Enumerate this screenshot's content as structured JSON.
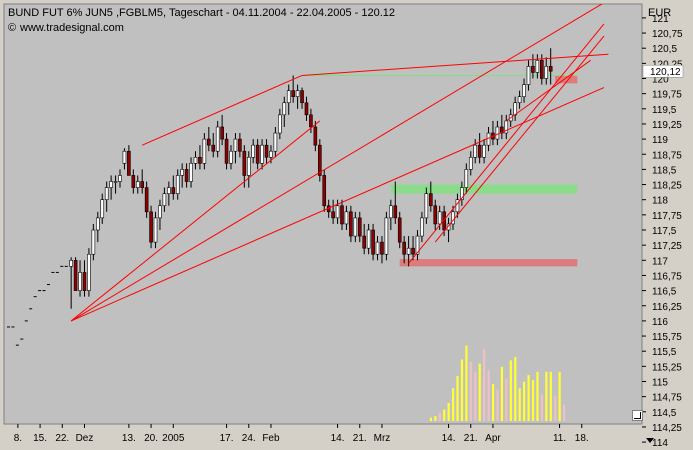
{
  "header": {
    "title": "BUND FUT 6% JUN5 ,FGBLM5, Tageschart - 04.11.2004 - 22.04.2005 - 120.12",
    "watermark": "www.tradesignal.com",
    "copyright_symbol": "©"
  },
  "colors": {
    "background": "#d4d0c8",
    "plot": "#c0c0c0",
    "trendline": "#ff0000",
    "bullish_candle": "#ffffff",
    "bearish_candle": "#8b0000",
    "volume_up": "#ffff33",
    "volume_down": "#f0c0c8",
    "zone_green": "#80e080",
    "zone_red": "#e07070"
  },
  "chart_data": {
    "type": "candlestick",
    "title": "BUND FUT 6% JUN5 ,FGBLM5, Tageschart - 04.11.2004 - 22.04.2005 - 120.12",
    "y_unit": "EUR",
    "ylim": [
      114,
      121.25
    ],
    "y_ticks": [
      "121",
      "120,75",
      "120,5",
      "120,25",
      "120",
      "119,75",
      "119,5",
      "119,25",
      "119",
      "118,75",
      "118,5",
      "118,25",
      "118",
      "117,75",
      "117,5",
      "117,25",
      "117",
      "116,75",
      "116,5",
      "116,25",
      "116",
      "115,75",
      "115,5",
      "115,25",
      "115",
      "114,75",
      "114,5",
      "114,25",
      "114"
    ],
    "last_price_label": "120,12",
    "last_price": 120.12,
    "x_labels": [
      "8.",
      "15.",
      "22.",
      "Dez",
      "13.",
      "20.",
      "2005",
      "17.",
      "24.",
      "Feb",
      "14.",
      "21.",
      "Mrz",
      "14.",
      "21.",
      "Apr",
      "11.",
      "18."
    ],
    "x_label_index": [
      2,
      7,
      12,
      17,
      27,
      32,
      37,
      49,
      54,
      59,
      74,
      79,
      84,
      99,
      104,
      109,
      124,
      129
    ],
    "prices": [
      {
        "i": 0,
        "p": 115.9
      },
      {
        "i": 1,
        "p": 115.9
      },
      {
        "i": 2,
        "p": 115.6
      },
      {
        "i": 3,
        "p": 115.7
      },
      {
        "i": 4,
        "p": 116
      },
      {
        "i": 5,
        "p": 116.2
      },
      {
        "i": 6,
        "p": 116.4
      },
      {
        "i": 7,
        "p": 116.5
      },
      {
        "i": 8,
        "p": 116.5
      },
      {
        "i": 9,
        "p": 116.6
      },
      {
        "i": 10,
        "p": 116.8
      },
      {
        "i": 11,
        "p": 116.8
      },
      {
        "i": 12,
        "p": 116.9
      },
      {
        "i": 13,
        "p": 116.9
      },
      {
        "i": 14,
        "o": 116.9,
        "h": 117.05,
        "l": 116.2,
        "c": 117
      },
      {
        "i": 15,
        "o": 117,
        "h": 117.05,
        "l": 116.5,
        "c": 116.5
      },
      {
        "i": 16,
        "o": 116.5,
        "h": 117,
        "l": 116.4,
        "c": 116.8
      },
      {
        "i": 17,
        "o": 116.8,
        "h": 117,
        "l": 116.4,
        "c": 116.5
      },
      {
        "i": 18,
        "o": 116.5,
        "h": 117.2,
        "l": 116.4,
        "c": 117.1
      },
      {
        "i": 19,
        "o": 117.1,
        "h": 117.6,
        "l": 117,
        "c": 117.5
      },
      {
        "i": 20,
        "o": 117.5,
        "h": 117.8,
        "l": 117.3,
        "c": 117.7
      },
      {
        "i": 21,
        "o": 117.7,
        "h": 118.1,
        "l": 117.6,
        "c": 118
      },
      {
        "i": 22,
        "o": 118,
        "h": 118.3,
        "l": 117.8,
        "c": 118.2
      },
      {
        "i": 23,
        "o": 118.2,
        "h": 118.4,
        "l": 118,
        "c": 118.3
      },
      {
        "i": 24,
        "o": 118.3,
        "h": 118.4,
        "l": 118.1,
        "c": 118.3
      },
      {
        "i": 25,
        "o": 118.3,
        "h": 118.5,
        "l": 118.2,
        "c": 118.4
      },
      {
        "i": 26,
        "o": 118.6,
        "h": 118.85,
        "l": 118.5,
        "c": 118.8
      },
      {
        "i": 27,
        "o": 118.8,
        "h": 118.9,
        "l": 118.4,
        "c": 118.4
      },
      {
        "i": 28,
        "o": 118.4,
        "h": 118.5,
        "l": 118.1,
        "c": 118.2
      },
      {
        "i": 29,
        "o": 118.2,
        "h": 118.4,
        "l": 118.1,
        "c": 118.3
      },
      {
        "i": 30,
        "o": 118.3,
        "h": 118.5,
        "l": 118.1,
        "c": 118.2
      },
      {
        "i": 31,
        "o": 118.2,
        "h": 118.3,
        "l": 117.7,
        "c": 117.8
      },
      {
        "i": 32,
        "o": 117.8,
        "h": 117.9,
        "l": 117.2,
        "c": 117.3
      },
      {
        "i": 33,
        "o": 117.3,
        "h": 117.8,
        "l": 117.2,
        "c": 117.7
      },
      {
        "i": 34,
        "o": 117.7,
        "h": 118,
        "l": 117.5,
        "c": 117.9
      },
      {
        "i": 35,
        "o": 117.9,
        "h": 118.2,
        "l": 117.8,
        "c": 118.1
      },
      {
        "i": 36,
        "o": 118.1,
        "h": 118.3,
        "l": 117.9,
        "c": 118.2
      },
      {
        "i": 37,
        "o": 118.2,
        "h": 118.4,
        "l": 118,
        "c": 118.1
      },
      {
        "i": 38,
        "o": 118.1,
        "h": 118.5,
        "l": 118,
        "c": 118.4
      },
      {
        "i": 39,
        "o": 118.4,
        "h": 118.6,
        "l": 118.2,
        "c": 118.5
      },
      {
        "i": 40,
        "o": 118.5,
        "h": 118.6,
        "l": 118.2,
        "c": 118.3
      },
      {
        "i": 41,
        "o": 118.3,
        "h": 118.7,
        "l": 118.2,
        "c": 118.6
      },
      {
        "i": 42,
        "o": 118.6,
        "h": 118.8,
        "l": 118.5,
        "c": 118.7
      },
      {
        "i": 43,
        "o": 118.7,
        "h": 118.9,
        "l": 118.5,
        "c": 118.6
      },
      {
        "i": 44,
        "o": 118.6,
        "h": 119.1,
        "l": 118.5,
        "c": 119
      },
      {
        "i": 45,
        "o": 119,
        "h": 119.2,
        "l": 118.8,
        "c": 118.9
      },
      {
        "i": 46,
        "o": 118.9,
        "h": 119.1,
        "l": 118.7,
        "c": 118.8
      },
      {
        "i": 47,
        "o": 118.8,
        "h": 119.3,
        "l": 118.7,
        "c": 119.2
      },
      {
        "i": 48,
        "o": 119.2,
        "h": 119.4,
        "l": 118.9,
        "c": 119
      },
      {
        "i": 49,
        "o": 119,
        "h": 119.1,
        "l": 118.5,
        "c": 118.6
      },
      {
        "i": 50,
        "o": 118.6,
        "h": 118.9,
        "l": 118.5,
        "c": 118.8
      },
      {
        "i": 51,
        "o": 118.8,
        "h": 119.1,
        "l": 118.6,
        "c": 119
      },
      {
        "i": 52,
        "o": 119,
        "h": 119.1,
        "l": 118.7,
        "c": 118.8
      },
      {
        "i": 53,
        "o": 118.8,
        "h": 118.9,
        "l": 118.2,
        "c": 118.4
      },
      {
        "i": 54,
        "o": 118.4,
        "h": 118.8,
        "l": 118.2,
        "c": 118.7
      },
      {
        "i": 55,
        "o": 118.7,
        "h": 119,
        "l": 118.6,
        "c": 118.9
      },
      {
        "i": 56,
        "o": 118.9,
        "h": 119,
        "l": 118.5,
        "c": 118.6
      },
      {
        "i": 57,
        "o": 118.6,
        "h": 119,
        "l": 118.5,
        "c": 118.9
      },
      {
        "i": 58,
        "o": 118.9,
        "h": 119,
        "l": 118.6,
        "c": 118.7
      },
      {
        "i": 59,
        "o": 118.7,
        "h": 118.9,
        "l": 118.6,
        "c": 118.8
      },
      {
        "i": 60,
        "o": 118.8,
        "h": 119.2,
        "l": 118.7,
        "c": 119.1
      },
      {
        "i": 61,
        "o": 119.1,
        "h": 119.5,
        "l": 119,
        "c": 119.4
      },
      {
        "i": 62,
        "o": 119.4,
        "h": 119.7,
        "l": 119.2,
        "c": 119.6
      },
      {
        "i": 63,
        "o": 119.6,
        "h": 119.9,
        "l": 119.4,
        "c": 119.8
      },
      {
        "i": 64,
        "o": 119.8,
        "h": 120.05,
        "l": 119.6,
        "c": 119.7
      },
      {
        "i": 65,
        "o": 119.7,
        "h": 119.9,
        "l": 119.5,
        "c": 119.8
      },
      {
        "i": 66,
        "o": 119.8,
        "h": 119.85,
        "l": 119.5,
        "c": 119.6
      },
      {
        "i": 67,
        "o": 119.6,
        "h": 119.7,
        "l": 119.3,
        "c": 119.4
      },
      {
        "i": 68,
        "o": 119.4,
        "h": 119.5,
        "l": 119.1,
        "c": 119.2
      },
      {
        "i": 69,
        "o": 119.2,
        "h": 119.3,
        "l": 118.8,
        "c": 118.9
      },
      {
        "i": 70,
        "o": 118.9,
        "h": 119,
        "l": 118.3,
        "c": 118.4
      },
      {
        "i": 71,
        "o": 118.4,
        "h": 118.5,
        "l": 117.8,
        "c": 117.9
      },
      {
        "i": 72,
        "o": 117.9,
        "h": 118,
        "l": 117.7,
        "c": 117.8
      },
      {
        "i": 73,
        "o": 117.8,
        "h": 118,
        "l": 117.6,
        "c": 117.7
      },
      {
        "i": 74,
        "o": 117.7,
        "h": 118,
        "l": 117.6,
        "c": 117.9
      },
      {
        "i": 75,
        "o": 117.9,
        "h": 118,
        "l": 117.5,
        "c": 117.6
      },
      {
        "i": 76,
        "o": 117.6,
        "h": 117.9,
        "l": 117.5,
        "c": 117.8
      },
      {
        "i": 77,
        "o": 117.8,
        "h": 117.9,
        "l": 117.3,
        "c": 117.4
      },
      {
        "i": 78,
        "o": 117.4,
        "h": 117.8,
        "l": 117.3,
        "c": 117.7
      },
      {
        "i": 79,
        "o": 117.7,
        "h": 117.8,
        "l": 117.3,
        "c": 117.4
      },
      {
        "i": 80,
        "o": 117.4,
        "h": 117.6,
        "l": 117.1,
        "c": 117.2
      },
      {
        "i": 81,
        "o": 117.2,
        "h": 117.6,
        "l": 117.1,
        "c": 117.5
      },
      {
        "i": 82,
        "o": 117.5,
        "h": 117.6,
        "l": 117,
        "c": 117.1
      },
      {
        "i": 83,
        "o": 117.1,
        "h": 117.4,
        "l": 117,
        "c": 117.3
      },
      {
        "i": 84,
        "o": 117.3,
        "h": 117.4,
        "l": 116.95,
        "c": 117.1
      },
      {
        "i": 85,
        "o": 117.1,
        "h": 117.8,
        "l": 117,
        "c": 117.7
      },
      {
        "i": 86,
        "o": 117.7,
        "h": 118,
        "l": 117.5,
        "c": 117.9
      },
      {
        "i": 87,
        "o": 117.9,
        "h": 118.3,
        "l": 117.6,
        "c": 117.7
      },
      {
        "i": 88,
        "o": 117.7,
        "h": 117.8,
        "l": 117.2,
        "c": 117.3
      },
      {
        "i": 89,
        "o": 117.3,
        "h": 117.4,
        "l": 116.95,
        "c": 117.1
      },
      {
        "i": 90,
        "o": 117.1,
        "h": 117.4,
        "l": 116.9,
        "c": 117.2
      },
      {
        "i": 91,
        "o": 117.2,
        "h": 117.4,
        "l": 117,
        "c": 117.1
      },
      {
        "i": 92,
        "o": 117.1,
        "h": 117.5,
        "l": 117,
        "c": 117.4
      },
      {
        "i": 93,
        "o": 117.4,
        "h": 117.8,
        "l": 117.3,
        "c": 117.7
      },
      {
        "i": 94,
        "o": 117.7,
        "h": 118.2,
        "l": 117.6,
        "c": 118.1
      },
      {
        "i": 95,
        "o": 118.1,
        "h": 118.3,
        "l": 117.8,
        "c": 117.9
      },
      {
        "i": 96,
        "o": 117.9,
        "h": 118,
        "l": 117.5,
        "c": 117.6
      },
      {
        "i": 97,
        "o": 117.6,
        "h": 117.9,
        "l": 117.5,
        "c": 117.8
      },
      {
        "i": 98,
        "o": 117.8,
        "h": 117.9,
        "l": 117.4,
        "c": 117.5
      },
      {
        "i": 99,
        "o": 117.5,
        "h": 117.7,
        "l": 117.3,
        "c": 117.6
      },
      {
        "i": 100,
        "o": 117.6,
        "h": 117.9,
        "l": 117.5,
        "c": 117.8
      },
      {
        "i": 101,
        "o": 117.8,
        "h": 118.1,
        "l": 117.7,
        "c": 118
      },
      {
        "i": 102,
        "o": 118,
        "h": 118.3,
        "l": 117.9,
        "c": 118.2
      },
      {
        "i": 103,
        "o": 118.2,
        "h": 118.6,
        "l": 118.1,
        "c": 118.5
      },
      {
        "i": 104,
        "o": 118.5,
        "h": 118.8,
        "l": 118.4,
        "c": 118.7
      },
      {
        "i": 105,
        "o": 118.7,
        "h": 119,
        "l": 118.6,
        "c": 118.9
      },
      {
        "i": 106,
        "o": 118.9,
        "h": 119.1,
        "l": 118.6,
        "c": 118.7
      },
      {
        "i": 107,
        "o": 118.7,
        "h": 119,
        "l": 118.6,
        "c": 118.9
      },
      {
        "i": 108,
        "o": 118.9,
        "h": 119.2,
        "l": 118.8,
        "c": 119.1
      },
      {
        "i": 109,
        "o": 119.1,
        "h": 119.3,
        "l": 118.9,
        "c": 119
      },
      {
        "i": 110,
        "o": 119,
        "h": 119.3,
        "l": 118.9,
        "c": 119.2
      },
      {
        "i": 111,
        "o": 119.2,
        "h": 119.4,
        "l": 119,
        "c": 119.1
      },
      {
        "i": 112,
        "o": 119.1,
        "h": 119.4,
        "l": 119,
        "c": 119.3
      },
      {
        "i": 113,
        "o": 119.3,
        "h": 119.5,
        "l": 119.2,
        "c": 119.4
      },
      {
        "i": 114,
        "o": 119.4,
        "h": 119.7,
        "l": 119.3,
        "c": 119.6
      },
      {
        "i": 115,
        "o": 119.6,
        "h": 119.8,
        "l": 119.5,
        "c": 119.7
      },
      {
        "i": 116,
        "o": 119.7,
        "h": 120,
        "l": 119.6,
        "c": 119.9
      },
      {
        "i": 117,
        "o": 119.9,
        "h": 120.3,
        "l": 119.8,
        "c": 120.2
      },
      {
        "i": 118,
        "o": 120.2,
        "h": 120.4,
        "l": 120,
        "c": 120.1
      },
      {
        "i": 119,
        "o": 120.1,
        "h": 120.4,
        "l": 120,
        "c": 120.3
      },
      {
        "i": 120,
        "o": 120.3,
        "h": 120.4,
        "l": 119.9,
        "c": 120
      },
      {
        "i": 121,
        "o": 120,
        "h": 120.35,
        "l": 119.9,
        "c": 120.2
      },
      {
        "i": 122,
        "o": 120.2,
        "h": 120.5,
        "l": 119.9,
        "c": 120.12
      }
    ],
    "volume": [
      {
        "i": 95,
        "v": 0.04,
        "d": "up"
      },
      {
        "i": 96,
        "v": 0.06,
        "d": "up"
      },
      {
        "i": 97,
        "v": 0.1,
        "d": "down"
      },
      {
        "i": 98,
        "v": 0.14,
        "d": "up"
      },
      {
        "i": 99,
        "v": 0.22,
        "d": "up"
      },
      {
        "i": 100,
        "v": 0.4,
        "d": "up"
      },
      {
        "i": 101,
        "v": 0.55,
        "d": "up"
      },
      {
        "i": 102,
        "v": 0.75,
        "d": "up"
      },
      {
        "i": 103,
        "v": 0.92,
        "d": "up"
      },
      {
        "i": 104,
        "v": 0.72,
        "d": "down"
      },
      {
        "i": 105,
        "v": 0.6,
        "d": "down"
      },
      {
        "i": 106,
        "v": 0.7,
        "d": "up"
      },
      {
        "i": 107,
        "v": 0.88,
        "d": "down"
      },
      {
        "i": 108,
        "v": 0.62,
        "d": "down"
      },
      {
        "i": 109,
        "v": 0.45,
        "d": "up"
      },
      {
        "i": 110,
        "v": 0.38,
        "d": "down"
      },
      {
        "i": 111,
        "v": 0.66,
        "d": "up"
      },
      {
        "i": 112,
        "v": 0.52,
        "d": "down"
      },
      {
        "i": 113,
        "v": 0.74,
        "d": "up"
      },
      {
        "i": 114,
        "v": 0.78,
        "d": "up"
      },
      {
        "i": 115,
        "v": 0.4,
        "d": "up"
      },
      {
        "i": 116,
        "v": 0.48,
        "d": "up"
      },
      {
        "i": 117,
        "v": 0.56,
        "d": "up"
      },
      {
        "i": 118,
        "v": 0.5,
        "d": "up"
      },
      {
        "i": 119,
        "v": 0.6,
        "d": "up"
      },
      {
        "i": 120,
        "v": 0.32,
        "d": "down"
      },
      {
        "i": 121,
        "v": 0.6,
        "d": "up"
      },
      {
        "i": 122,
        "v": 0.6,
        "d": "up"
      },
      {
        "i": 123,
        "v": 0.3,
        "d": "down"
      },
      {
        "i": 124,
        "v": 0.6,
        "d": "up"
      },
      {
        "i": 125,
        "v": 0.2,
        "d": "down"
      }
    ],
    "trendlines": [
      {
        "i1": 14,
        "p1": 116,
        "i2": 134,
        "p2": 121.25
      },
      {
        "i1": 30,
        "p1": 118.9,
        "i2": 66,
        "p2": 120.05
      },
      {
        "i1": 66,
        "p1": 120.05,
        "i2": 135,
        "p2": 120.4
      },
      {
        "i1": 14,
        "p1": 116,
        "i2": 70,
        "p2": 119.3
      },
      {
        "i1": 14,
        "p1": 116,
        "i2": 134,
        "p2": 119.85
      },
      {
        "i1": 90,
        "p1": 116.95,
        "i2": 134,
        "p2": 120.9
      },
      {
        "i1": 96,
        "p1": 117.3,
        "i2": 134,
        "p2": 120.7
      },
      {
        "i1": 112,
        "p1": 119.3,
        "i2": 131,
        "p2": 120.3
      }
    ],
    "hlines": [
      {
        "i1": 66,
        "i2": 128,
        "p": 120.05,
        "color": "green"
      }
    ],
    "zones": [
      {
        "i1": 86,
        "i2": 128,
        "p_low": 118.1,
        "p_high": 118.25,
        "color": "green"
      },
      {
        "i1": 88,
        "i2": 128,
        "p_low": 116.9,
        "p_high": 117.02,
        "color": "red"
      },
      {
        "i1": 123,
        "i2": 128,
        "p_low": 119.92,
        "p_high": 120.05,
        "color": "red"
      }
    ],
    "grid": false,
    "legend": "none"
  }
}
